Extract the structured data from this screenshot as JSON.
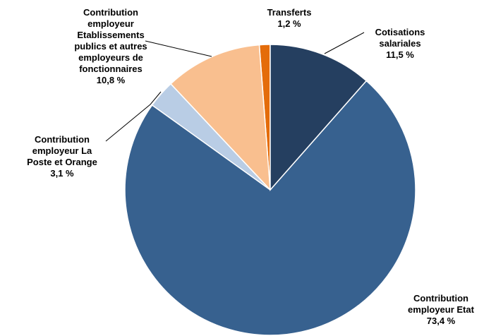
{
  "chart_data": {
    "type": "pie",
    "categories": [
      "Cotisations salariales",
      "Contribution employeur Etat",
      "Contribution employeur La Poste et Orange",
      "Contribution employeur Etablissements publics et autres employeurs de fonctionnaires",
      "Transferts"
    ],
    "values": [
      11.5,
      73.4,
      3.1,
      10.8,
      1.2
    ],
    "value_labels": [
      "11,5 %",
      "73,4 %",
      "3,1 %",
      "10,8 %",
      "1,2 %"
    ],
    "colors": [
      "#253f60",
      "#37618f",
      "#b9cde5",
      "#f9bf8f",
      "#e46c0a"
    ]
  }
}
